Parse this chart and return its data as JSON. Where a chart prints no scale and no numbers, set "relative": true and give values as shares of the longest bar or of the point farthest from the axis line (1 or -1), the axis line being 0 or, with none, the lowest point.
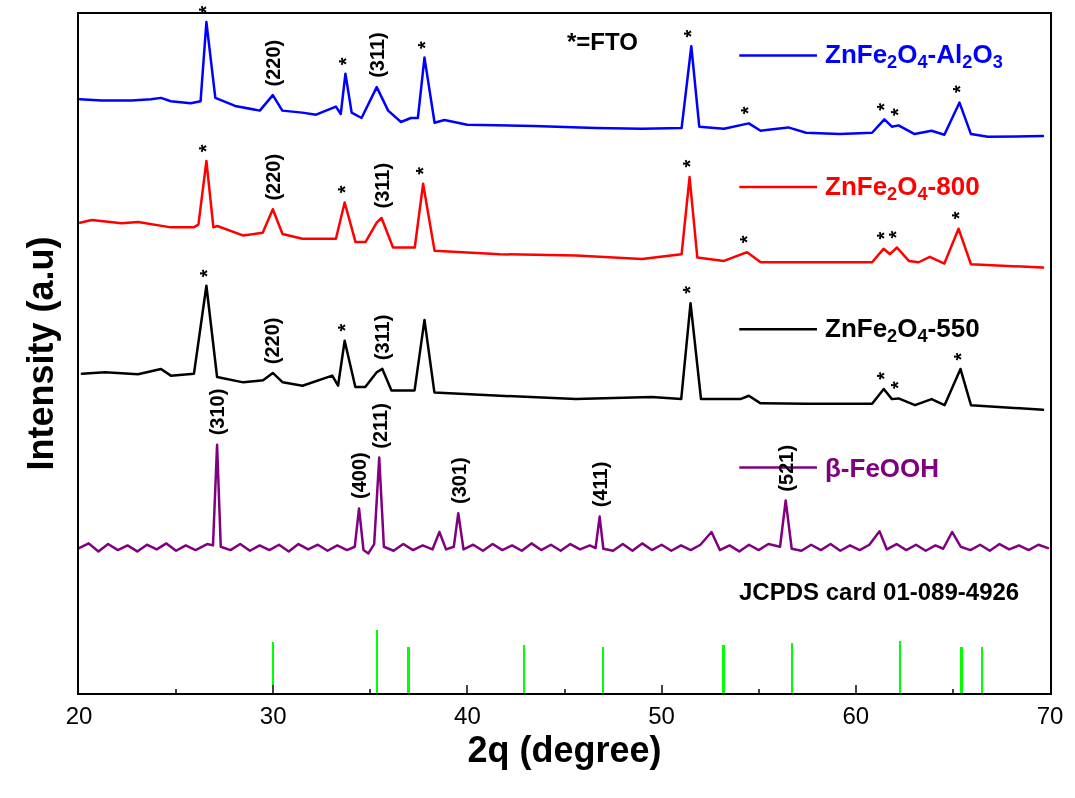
{
  "chart_data": {
    "type": "line",
    "relative": true,
    "xlabel": "2q (degree)",
    "ylabel": "Intensity (a.u)",
    "xlim": [
      20,
      70
    ],
    "xticks": [
      20,
      30,
      40,
      50,
      60,
      70
    ],
    "tick_labels": "x",
    "legend": "right",
    "marker": "none",
    "line_style": "solid",
    "series": [
      {
        "name": "ZnFe$_{2}$O$_{4}$-Al$_{2}$O$_{3}$",
        "color": "#0000ff",
        "x": [
          20.05,
          21.17,
          22.7,
          23.71,
          24.22,
          24.73,
          25.75,
          26.26,
          26.56,
          27.02,
          28.04,
          29.31,
          29.98,
          30.47,
          31.5,
          32.21,
          33.23,
          33.48,
          33.72,
          34.04,
          34.55,
          35.33,
          35.92,
          36.58,
          37.09,
          37.45,
          37.79,
          38.31,
          38.82,
          39.99,
          43.4,
          46.6,
          48.99,
          51.03,
          51.53,
          51.94,
          53.21,
          54.49,
          55.1,
          56.52,
          57.44,
          59.17,
          60.84,
          61.47,
          61.86,
          62.2,
          63.03,
          63.9,
          64.56,
          65.34,
          65.93,
          66.8,
          69.64
        ],
        "values": [
          0.885,
          0.883,
          0.883,
          0.885,
          0.887,
          0.882,
          0.879,
          0.882,
          1.0,
          0.887,
          0.875,
          0.868,
          0.891,
          0.868,
          0.865,
          0.862,
          0.874,
          0.863,
          0.923,
          0.865,
          0.857,
          0.903,
          0.868,
          0.851,
          0.857,
          0.857,
          0.947,
          0.85,
          0.854,
          0.847,
          0.845,
          0.842,
          0.841,
          0.842,
          0.964,
          0.844,
          0.841,
          0.849,
          0.838,
          0.843,
          0.835,
          0.833,
          0.835,
          0.855,
          0.844,
          0.846,
          0.833,
          0.838,
          0.832,
          0.88,
          0.833,
          0.829,
          0.83
        ]
      },
      {
        "name": "ZnFe$_{2}$O$_{4}$-800",
        "color": "#ff0000",
        "x": [
          20.05,
          20.66,
          22.19,
          23.05,
          24.73,
          25.9,
          26.15,
          26.56,
          26.92,
          27.12,
          28.44,
          29.46,
          29.98,
          30.48,
          31.5,
          33.23,
          33.68,
          34.24,
          34.75,
          35.33,
          35.58,
          36.17,
          37.29,
          37.72,
          38.31,
          41.67,
          45.59,
          48.99,
          51.03,
          51.44,
          51.84,
          53.21,
          54.4,
          55.1,
          57.44,
          60.84,
          61.43,
          61.76,
          62.12,
          62.73,
          63.24,
          63.81,
          64.56,
          65.29,
          65.93,
          69.64
        ],
        "values": [
          0.701,
          0.705,
          0.7,
          0.702,
          0.694,
          0.694,
          0.698,
          0.793,
          0.694,
          0.696,
          0.682,
          0.686,
          0.721,
          0.684,
          0.677,
          0.677,
          0.731,
          0.672,
          0.672,
          0.701,
          0.708,
          0.664,
          0.664,
          0.759,
          0.659,
          0.654,
          0.652,
          0.647,
          0.654,
          0.769,
          0.649,
          0.644,
          0.657,
          0.642,
          0.642,
          0.642,
          0.662,
          0.654,
          0.664,
          0.644,
          0.642,
          0.65,
          0.64,
          0.692,
          0.639,
          0.634
        ]
      },
      {
        "name": "ZnFe$_{2}$O$_{4}$-550",
        "color": "#000000",
        "x": [
          20.15,
          21.34,
          23.04,
          24.22,
          24.73,
          25.92,
          26.56,
          27.11,
          28.46,
          29.48,
          29.98,
          30.49,
          31.51,
          33.04,
          33.34,
          33.68,
          34.23,
          34.74,
          35.33,
          35.62,
          36.09,
          37.28,
          37.79,
          38.3,
          41.68,
          45.59,
          49.49,
          51.01,
          51.49,
          52.03,
          54.06,
          54.49,
          55.08,
          57.45,
          60.84,
          61.44,
          61.86,
          62.2,
          63.05,
          63.9,
          64.57,
          65.39,
          65.93,
          69.64
        ],
        "values": [
          0.476,
          0.478,
          0.475,
          0.483,
          0.473,
          0.476,
          0.607,
          0.471,
          0.463,
          0.466,
          0.477,
          0.463,
          0.458,
          0.473,
          0.458,
          0.525,
          0.456,
          0.456,
          0.478,
          0.483,
          0.451,
          0.451,
          0.556,
          0.448,
          0.443,
          0.438,
          0.441,
          0.438,
          0.581,
          0.438,
          0.438,
          0.443,
          0.432,
          0.431,
          0.431,
          0.453,
          0.438,
          0.439,
          0.429,
          0.438,
          0.429,
          0.483,
          0.429,
          0.422
        ]
      },
      {
        "name": "β-FeOOH",
        "color": "#800080",
        "x": [
          20.0,
          20.5,
          21.0,
          21.5,
          22.0,
          22.5,
          23.0,
          23.5,
          24.0,
          24.5,
          25.0,
          25.5,
          26.0,
          26.6,
          26.9,
          27.11,
          27.3,
          27.8,
          28.3,
          28.8,
          29.3,
          29.8,
          30.3,
          30.8,
          31.3,
          31.8,
          32.3,
          32.8,
          33.3,
          33.8,
          34.2,
          34.42,
          34.65,
          34.9,
          35.2,
          35.46,
          35.7,
          36.2,
          36.7,
          37.2,
          37.7,
          38.2,
          38.56,
          38.9,
          39.3,
          39.53,
          39.8,
          40.3,
          40.8,
          41.3,
          41.8,
          42.3,
          42.8,
          43.3,
          43.8,
          44.3,
          44.8,
          45.3,
          45.8,
          46.3,
          46.6,
          46.81,
          47.0,
          47.5,
          48.0,
          48.5,
          49.0,
          49.5,
          50.0,
          50.5,
          51.0,
          51.5,
          52.0,
          52.57,
          53.0,
          53.5,
          54.0,
          54.5,
          55.0,
          55.5,
          56.1,
          56.39,
          56.7,
          57.2,
          57.7,
          58.2,
          58.7,
          59.2,
          59.7,
          60.2,
          60.7,
          61.22,
          61.6,
          62.1,
          62.6,
          63.1,
          63.6,
          64.1,
          64.5,
          64.96,
          65.4,
          65.9,
          66.4,
          66.9,
          67.4,
          67.9,
          68.4,
          68.9,
          69.4,
          69.9
        ],
        "values": [
          0.216,
          0.223,
          0.211,
          0.222,
          0.213,
          0.22,
          0.211,
          0.221,
          0.214,
          0.223,
          0.212,
          0.22,
          0.213,
          0.222,
          0.22,
          0.37,
          0.218,
          0.213,
          0.222,
          0.212,
          0.22,
          0.213,
          0.221,
          0.211,
          0.222,
          0.214,
          0.221,
          0.212,
          0.22,
          0.213,
          0.218,
          0.275,
          0.213,
          0.208,
          0.222,
          0.351,
          0.218,
          0.212,
          0.222,
          0.213,
          0.22,
          0.214,
          0.24,
          0.214,
          0.218,
          0.268,
          0.214,
          0.221,
          0.212,
          0.222,
          0.213,
          0.22,
          0.212,
          0.223,
          0.213,
          0.221,
          0.212,
          0.222,
          0.214,
          0.22,
          0.216,
          0.263,
          0.215,
          0.212,
          0.222,
          0.212,
          0.223,
          0.213,
          0.221,
          0.212,
          0.22,
          0.213,
          0.221,
          0.24,
          0.213,
          0.22,
          0.211,
          0.221,
          0.213,
          0.222,
          0.218,
          0.287,
          0.215,
          0.212,
          0.221,
          0.213,
          0.222,
          0.212,
          0.22,
          0.213,
          0.221,
          0.241,
          0.214,
          0.222,
          0.213,
          0.221,
          0.212,
          0.22,
          0.215,
          0.24,
          0.218,
          0.213,
          0.221,
          0.212,
          0.222,
          0.214,
          0.22,
          0.213,
          0.221,
          0.216
        ]
      },
      {
        "type": "bar",
        "color": "#00ff00",
        "x": [
          30.0,
          35.36,
          36.96,
          42.93,
          46.97,
          53.19,
          56.71,
          62.26,
          65.45,
          66.5
        ],
        "values": [
          0.076,
          0.094,
          0.068,
          0.071,
          0.068,
          0.071,
          0.074,
          0.078,
          0.068,
          0.068
        ]
      }
    ],
    "annotations": [
      "*=FTO",
      "JCPDS card 01-089-4926",
      {
        "text": "*",
        "x": 26.56,
        "y": 1.0
      },
      {
        "text": "(220)",
        "x": 29.98,
        "y": 0.891
      },
      {
        "text": "*",
        "x": 33.72,
        "y": 0.923
      },
      {
        "text": "(311)",
        "x": 35.33,
        "y": 0.903
      },
      {
        "text": "*",
        "x": 37.79,
        "y": 0.947
      },
      {
        "text": "*",
        "x": 51.53,
        "y": 0.964
      },
      {
        "text": "*",
        "x": 54.49,
        "y": 0.849
      },
      {
        "text": "*",
        "x": 61.47,
        "y": 0.855
      },
      {
        "text": "*",
        "x": 62.2,
        "y": 0.846
      },
      {
        "text": "*",
        "x": 65.34,
        "y": 0.88
      },
      {
        "text": "*",
        "x": 26.56,
        "y": 0.793
      },
      {
        "text": "(220)",
        "x": 29.98,
        "y": 0.721
      },
      {
        "text": "*",
        "x": 33.68,
        "y": 0.731
      },
      {
        "text": "(311)",
        "x": 35.58,
        "y": 0.708
      },
      {
        "text": "*",
        "x": 37.72,
        "y": 0.759
      },
      {
        "text": "*",
        "x": 51.44,
        "y": 0.769
      },
      {
        "text": "*",
        "x": 54.4,
        "y": 0.657
      },
      {
        "text": "*",
        "x": 61.43,
        "y": 0.662
      },
      {
        "text": "*",
        "x": 62.12,
        "y": 0.664
      },
      {
        "text": "*",
        "x": 65.29,
        "y": 0.692
      },
      {
        "text": "*",
        "x": 26.56,
        "y": 0.607
      },
      {
        "text": "(220)",
        "x": 29.98,
        "y": 0.477
      },
      {
        "text": "*",
        "x": 33.68,
        "y": 0.525
      },
      {
        "text": "(311)",
        "x": 35.62,
        "y": 0.483
      },
      {
        "text": "*",
        "x": 51.49,
        "y": 0.581
      },
      {
        "text": "*",
        "x": 61.44,
        "y": 0.453
      },
      {
        "text": "*",
        "x": 62.2,
        "y": 0.439
      },
      {
        "text": "*",
        "x": 65.39,
        "y": 0.483
      },
      {
        "text": "(310)",
        "x": 27.11,
        "y": 0.37
      },
      {
        "text": "(400)",
        "x": 34.42,
        "y": 0.275
      },
      {
        "text": "(211)",
        "x": 35.46,
        "y": 0.351
      },
      {
        "text": "(301)",
        "x": 39.53,
        "y": 0.268
      },
      {
        "text": "(411)",
        "x": 46.81,
        "y": 0.263
      },
      {
        "text": "(521)",
        "x": 56.39,
        "y": 0.287
      }
    ]
  }
}
